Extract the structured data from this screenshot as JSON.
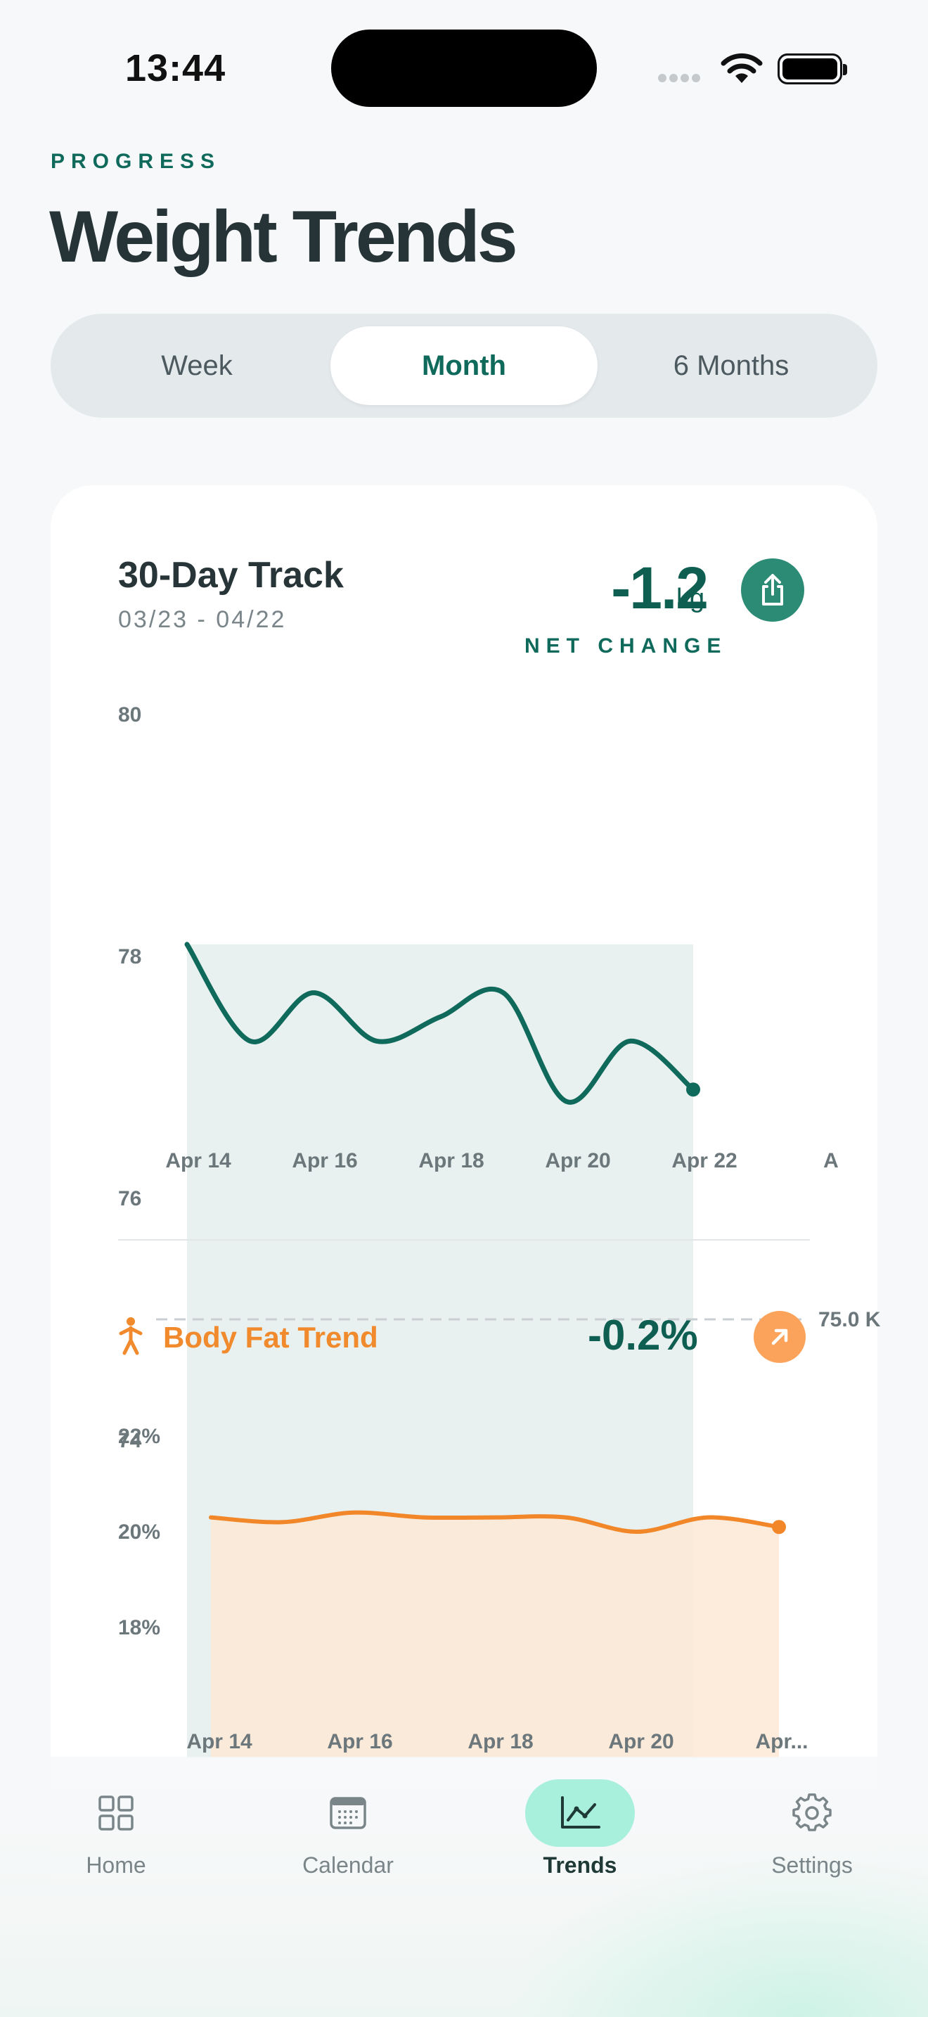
{
  "status": {
    "time": "13:44"
  },
  "header": {
    "kicker": "PROGRESS",
    "title": "Weight Trends"
  },
  "segments": [
    {
      "label": "Week",
      "active": false
    },
    {
      "label": "Month",
      "active": true
    },
    {
      "label": "6 Months",
      "active": false
    }
  ],
  "card": {
    "title": "30-Day Track",
    "dates": "03/23 - 04/22",
    "net_value": "-1.2",
    "net_unit": "kg",
    "net_label": "NET CHANGE"
  },
  "body_fat": {
    "title": "Body Fat Trend",
    "value": "-0.2%"
  },
  "chart_data": [
    {
      "type": "area",
      "ylim": [
        73,
        80
      ],
      "y_ticks": [
        "80",
        "78",
        "76",
        "74"
      ],
      "x_ticks": [
        "Apr 14",
        "Apr 16",
        "Apr 18",
        "Apr 20",
        "Apr 22",
        "A"
      ],
      "goal_line": {
        "value": 75.0,
        "label": "75.0 K"
      },
      "series": [
        {
          "x": [
            0,
            1,
            2,
            3,
            4,
            5,
            6,
            7,
            8
          ],
          "values": [
            78.1,
            77.3,
            77.7,
            77.3,
            77.5,
            77.7,
            76.8,
            77.3,
            76.9
          ]
        }
      ]
    },
    {
      "type": "area",
      "ylim": [
        17,
        23
      ],
      "y_ticks": [
        "22%",
        "20%",
        "18%"
      ],
      "x_ticks": [
        "Apr 14",
        "Apr 16",
        "Apr 18",
        "Apr 20",
        "Apr..."
      ],
      "series": [
        {
          "x": [
            0,
            1,
            2,
            3,
            4,
            5,
            6,
            7,
            8
          ],
          "values": [
            20.3,
            20.2,
            20.4,
            20.3,
            20.3,
            20.3,
            20.0,
            20.3,
            20.1
          ]
        }
      ]
    }
  ],
  "tabs": [
    {
      "label": "Home",
      "icon": "grid-icon"
    },
    {
      "label": "Calendar",
      "icon": "calendar-icon"
    },
    {
      "label": "Trends",
      "icon": "chart-line-icon",
      "active": true
    },
    {
      "label": "Settings",
      "icon": "gear-icon"
    }
  ]
}
